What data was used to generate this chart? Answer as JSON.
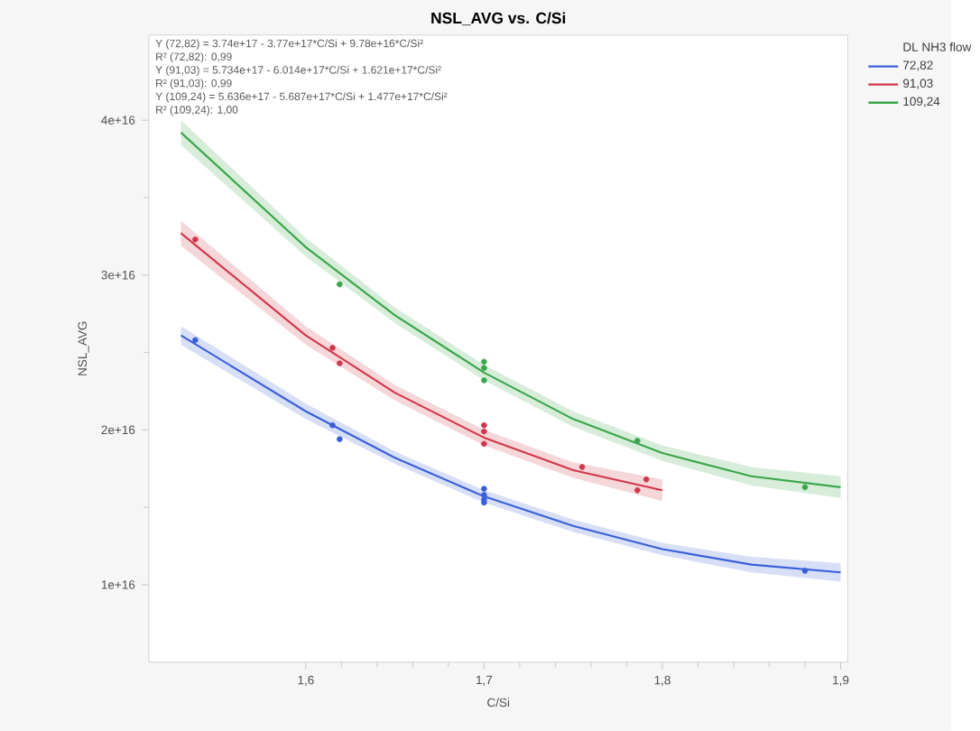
{
  "chart_data": {
    "type": "scatter",
    "title": "NSL_AVG vs. C/Si",
    "xlabel": "C/Si",
    "ylabel": "NSL_AVG",
    "legend_title": "DL NH3 flow",
    "legend": "right",
    "annotations": [
      "Y (72,82) = 3.74e+17 - 3.77e+17*C/Si + 9.78e+16*C/Si²",
      "R² (72,82): 0,99",
      "Y (91,03) = 5.734e+17 - 6.014e+17*C/Si + 1.621e+17*C/Si²",
      "R² (91,03): 0,99",
      "Y (109,24) = 5.636e+17 - 5.687e+17*C/Si + 1.477e+17*C/Si²",
      "R² (109,24): 1,00"
    ],
    "xlim": [
      1.512,
      1.904
    ],
    "ylim": [
      5000000000000000.0,
      4.55e+16
    ],
    "xticks": [
      {
        "value": 1.6,
        "label": "1,6"
      },
      {
        "value": 1.7,
        "label": "1,7"
      },
      {
        "value": 1.8,
        "label": "1,8"
      },
      {
        "value": 1.9,
        "label": "1,9"
      }
    ],
    "yticks": [
      {
        "value": 1e+16,
        "label": "1e+16"
      },
      {
        "value": 2e+16,
        "label": "2e+16"
      },
      {
        "value": 3e+16,
        "label": "3e+16"
      },
      {
        "value": 4e+16,
        "label": "4e+16"
      }
    ],
    "series": [
      {
        "type": "line",
        "name": "72,82",
        "color": "#3a5fd9",
        "marker": "none",
        "x": [
          1.53,
          1.6,
          1.65,
          1.7,
          1.75,
          1.8,
          1.85,
          1.9
        ],
        "values": [
          2.61e+16,
          2.12e+16,
          1.82e+16,
          1.57e+16,
          1.38e+16,
          1.23e+16,
          1.13e+16,
          1.08e+16
        ],
        "lower": [
          2.55e+16,
          2.07e+16,
          1.78e+16,
          1.53e+16,
          1.34e+16,
          1.19e+16,
          1.08e+16,
          1.02e+16
        ],
        "upper": [
          2.67e+16,
          2.17e+16,
          1.86e+16,
          1.61e+16,
          1.42e+16,
          1.27e+16,
          1.18e+16,
          1.14e+16
        ]
      },
      {
        "type": "line",
        "name": "91,03",
        "color": "#d0384a",
        "marker": "none",
        "x": [
          1.53,
          1.6,
          1.65,
          1.7,
          1.75,
          1.8
        ],
        "values": [
          3.27e+16,
          2.61e+16,
          2.24e+16,
          1.95e+16,
          1.74e+16,
          1.61e+16
        ],
        "lower": [
          3.19e+16,
          2.55e+16,
          2.19e+16,
          1.9e+16,
          1.69e+16,
          1.54e+16
        ],
        "upper": [
          3.35e+16,
          2.67e+16,
          2.29e+16,
          2e+16,
          1.79e+16,
          1.68e+16
        ]
      },
      {
        "type": "line",
        "name": "109,24",
        "color": "#3aa64a",
        "marker": "none",
        "x": [
          1.53,
          1.6,
          1.65,
          1.7,
          1.75,
          1.8,
          1.85,
          1.9
        ],
        "values": [
          3.92e+16,
          3.18e+16,
          2.74e+16,
          2.37e+16,
          2.07e+16,
          1.85e+16,
          1.7e+16,
          1.63e+16
        ],
        "lower": [
          3.84e+16,
          3.12e+16,
          2.69e+16,
          2.32e+16,
          2.02e+16,
          1.8e+16,
          1.64e+16,
          1.56e+16
        ],
        "upper": [
          4e+16,
          3.24e+16,
          2.79e+16,
          2.42e+16,
          2.12e+16,
          1.9e+16,
          1.76e+16,
          1.7e+16
        ]
      },
      {
        "color": "#3a5fd9",
        "marker": "circle",
        "x": [
          1.538,
          1.615,
          1.619,
          1.7,
          1.7,
          1.7,
          1.7,
          1.88
        ],
        "values": [
          2.58e+16,
          2.03e+16,
          1.94e+16,
          1.62e+16,
          1.58e+16,
          1.55e+16,
          1.53e+16,
          1.09e+16
        ]
      },
      {
        "color": "#d0384a",
        "marker": "circle",
        "x": [
          1.538,
          1.615,
          1.619,
          1.7,
          1.7,
          1.7,
          1.755,
          1.791,
          1.786
        ],
        "values": [
          3.23e+16,
          2.53e+16,
          2.43e+16,
          2.03e+16,
          1.99e+16,
          1.91e+16,
          1.76e+16,
          1.68e+16,
          1.61e+16
        ]
      },
      {
        "color": "#3aa64a",
        "marker": "circle",
        "x": [
          1.619,
          1.7,
          1.7,
          1.7,
          1.786,
          1.88
        ],
        "values": [
          2.94e+16,
          2.44e+16,
          2.4e+16,
          2.32e+16,
          1.93e+16,
          1.63e+16
        ]
      }
    ]
  }
}
